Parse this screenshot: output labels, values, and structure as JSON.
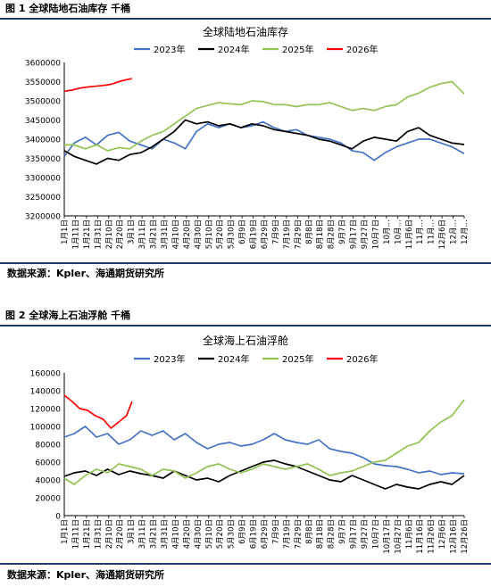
{
  "figure1": {
    "caption": "图 1 全球陆地石油库存 千桶",
    "source": "数据来源：Kpler、海通期货研究所"
  },
  "figure2": {
    "caption": "图 2 全球海上石油浮舱 千桶",
    "source": "数据来源：Kpler、海通期货研究所"
  },
  "colors": {
    "2023年": "#4472c4",
    "2024年": "#000000",
    "2025年": "#92c353",
    "2026年": "#ff0000",
    "rule": "#1f3a6e"
  },
  "chart_data": [
    {
      "type": "line",
      "title": "全球陆地石油库存",
      "legend_position": "top",
      "ylim": [
        3200000,
        3600000
      ],
      "y_ticks": [
        "3600000",
        "3550000",
        "3500000",
        "3450000",
        "3400000",
        "3350000",
        "3300000",
        "3250000",
        "3200000"
      ],
      "x_ticks": [
        "1月1日",
        "1月11日",
        "1月21日",
        "1月31日",
        "2月10日",
        "2月20日",
        "3月1日",
        "3月11日",
        "3月21日",
        "3月31日",
        "4月10日",
        "4月20日",
        "4月30日",
        "5月10日",
        "5月20日",
        "5月30日",
        "6月9日",
        "6月19日",
        "6月29日",
        "7月9日",
        "7月19日",
        "7月29日",
        "8月8日",
        "8月18日",
        "8月28日",
        "9月7日",
        "9月17日",
        "9月27日",
        "10月7日",
        "10月…",
        "10月…",
        "11月6日",
        "11月…",
        "11月…",
        "12月6日",
        "12月…",
        "12月…"
      ],
      "series": [
        {
          "name": "2023年",
          "points": [
            [
              1,
              3355000
            ],
            [
              10,
              3390000
            ],
            [
              20,
              3405000
            ],
            [
              30,
              3385000
            ],
            [
              40,
              3410000
            ],
            [
              50,
              3418000
            ],
            [
              60,
              3395000
            ],
            [
              70,
              3385000
            ],
            [
              80,
              3375000
            ],
            [
              90,
              3400000
            ],
            [
              100,
              3390000
            ],
            [
              110,
              3375000
            ],
            [
              120,
              3420000
            ],
            [
              130,
              3440000
            ],
            [
              140,
              3430000
            ],
            [
              150,
              3440000
            ],
            [
              160,
              3430000
            ],
            [
              170,
              3435000
            ],
            [
              180,
              3445000
            ],
            [
              190,
              3430000
            ],
            [
              200,
              3420000
            ],
            [
              210,
              3425000
            ],
            [
              220,
              3410000
            ],
            [
              230,
              3405000
            ],
            [
              240,
              3400000
            ],
            [
              250,
              3390000
            ],
            [
              260,
              3370000
            ],
            [
              270,
              3365000
            ],
            [
              280,
              3345000
            ],
            [
              290,
              3365000
            ],
            [
              300,
              3380000
            ],
            [
              310,
              3390000
            ],
            [
              320,
              3400000
            ],
            [
              330,
              3400000
            ],
            [
              340,
              3390000
            ],
            [
              350,
              3380000
            ],
            [
              361,
              3362000
            ]
          ]
        },
        {
          "name": "2024年",
          "points": [
            [
              1,
              3370000
            ],
            [
              10,
              3355000
            ],
            [
              20,
              3345000
            ],
            [
              30,
              3335000
            ],
            [
              40,
              3350000
            ],
            [
              50,
              3345000
            ],
            [
              60,
              3360000
            ],
            [
              70,
              3365000
            ],
            [
              80,
              3380000
            ],
            [
              90,
              3400000
            ],
            [
              100,
              3420000
            ],
            [
              110,
              3450000
            ],
            [
              120,
              3440000
            ],
            [
              130,
              3445000
            ],
            [
              140,
              3435000
            ],
            [
              150,
              3440000
            ],
            [
              160,
              3430000
            ],
            [
              170,
              3440000
            ],
            [
              180,
              3435000
            ],
            [
              190,
              3425000
            ],
            [
              200,
              3420000
            ],
            [
              210,
              3415000
            ],
            [
              220,
              3410000
            ],
            [
              230,
              3400000
            ],
            [
              240,
              3395000
            ],
            [
              250,
              3385000
            ],
            [
              260,
              3375000
            ],
            [
              270,
              3395000
            ],
            [
              280,
              3405000
            ],
            [
              290,
              3400000
            ],
            [
              300,
              3395000
            ],
            [
              310,
              3420000
            ],
            [
              320,
              3430000
            ],
            [
              330,
              3410000
            ],
            [
              340,
              3400000
            ],
            [
              350,
              3390000
            ],
            [
              361,
              3386000
            ]
          ]
        },
        {
          "name": "2025年",
          "points": [
            [
              1,
              3385000
            ],
            [
              10,
              3385000
            ],
            [
              20,
              3375000
            ],
            [
              30,
              3385000
            ],
            [
              40,
              3370000
            ],
            [
              50,
              3378000
            ],
            [
              60,
              3375000
            ],
            [
              70,
              3395000
            ],
            [
              80,
              3410000
            ],
            [
              90,
              3420000
            ],
            [
              100,
              3440000
            ],
            [
              110,
              3460000
            ],
            [
              120,
              3480000
            ],
            [
              130,
              3488000
            ],
            [
              140,
              3495000
            ],
            [
              150,
              3492000
            ],
            [
              160,
              3490000
            ],
            [
              170,
              3500000
            ],
            [
              180,
              3498000
            ],
            [
              190,
              3490000
            ],
            [
              200,
              3490000
            ],
            [
              210,
              3485000
            ],
            [
              220,
              3490000
            ],
            [
              230,
              3490000
            ],
            [
              240,
              3495000
            ],
            [
              250,
              3485000
            ],
            [
              260,
              3475000
            ],
            [
              270,
              3480000
            ],
            [
              280,
              3475000
            ],
            [
              290,
              3485000
            ],
            [
              300,
              3490000
            ],
            [
              310,
              3510000
            ],
            [
              320,
              3520000
            ],
            [
              330,
              3535000
            ],
            [
              340,
              3545000
            ],
            [
              350,
              3550000
            ],
            [
              361,
              3518000
            ]
          ]
        },
        {
          "name": "2026年",
          "points": [
            [
              1,
              3525000
            ],
            [
              8,
              3528000
            ],
            [
              15,
              3533000
            ],
            [
              22,
              3536000
            ],
            [
              29,
              3538000
            ],
            [
              36,
              3540000
            ],
            [
              43,
              3543000
            ],
            [
              50,
              3550000
            ],
            [
              57,
              3555000
            ],
            [
              62,
              3558000
            ]
          ]
        }
      ]
    },
    {
      "type": "line",
      "title": "全球海上石油浮舱",
      "legend_position": "top",
      "ylim": [
        0,
        160000
      ],
      "y_ticks": [
        "160000",
        "140000",
        "120000",
        "100000",
        "80000",
        "60000",
        "40000",
        "20000",
        "0"
      ],
      "x_ticks": [
        "1月1日",
        "1月11日",
        "1月21日",
        "1月31日",
        "2月10日",
        "2月20日",
        "3月1日",
        "3月11日",
        "3月21日",
        "3月31日",
        "4月10日",
        "4月20日",
        "4月30日",
        "5月10日",
        "5月20日",
        "5月30日",
        "6月9日",
        "6月19日",
        "6月29日",
        "7月9日",
        "7月19日",
        "7月29日",
        "8月8日",
        "8月18日",
        "8月28日",
        "9月7日",
        "9月17日",
        "9月27日",
        "10月7日",
        "10月17日",
        "10月27日",
        "11月6日",
        "11月16日",
        "11月26日",
        "12月6日",
        "12月16日",
        "12月26日"
      ],
      "series": [
        {
          "name": "2023年",
          "points": [
            [
              1,
              88000
            ],
            [
              10,
              92000
            ],
            [
              20,
              100000
            ],
            [
              30,
              88000
            ],
            [
              40,
              92000
            ],
            [
              50,
              80000
            ],
            [
              60,
              85000
            ],
            [
              70,
              95000
            ],
            [
              80,
              90000
            ],
            [
              90,
              95000
            ],
            [
              100,
              85000
            ],
            [
              110,
              92000
            ],
            [
              120,
              82000
            ],
            [
              130,
              75000
            ],
            [
              140,
              80000
            ],
            [
              150,
              82000
            ],
            [
              160,
              78000
            ],
            [
              170,
              80000
            ],
            [
              180,
              85000
            ],
            [
              190,
              92000
            ],
            [
              200,
              85000
            ],
            [
              210,
              82000
            ],
            [
              220,
              80000
            ],
            [
              230,
              85000
            ],
            [
              240,
              75000
            ],
            [
              250,
              72000
            ],
            [
              260,
              70000
            ],
            [
              270,
              65000
            ],
            [
              280,
              58000
            ],
            [
              290,
              56000
            ],
            [
              300,
              55000
            ],
            [
              310,
              52000
            ],
            [
              320,
              48000
            ],
            [
              330,
              50000
            ],
            [
              340,
              46000
            ],
            [
              350,
              48000
            ],
            [
              361,
              47000
            ]
          ]
        },
        {
          "name": "2024年",
          "points": [
            [
              1,
              44000
            ],
            [
              10,
              48000
            ],
            [
              20,
              50000
            ],
            [
              30,
              45000
            ],
            [
              40,
              52000
            ],
            [
              50,
              46000
            ],
            [
              60,
              50000
            ],
            [
              70,
              47000
            ],
            [
              80,
              45000
            ],
            [
              90,
              42000
            ],
            [
              100,
              50000
            ],
            [
              110,
              45000
            ],
            [
              120,
              40000
            ],
            [
              130,
              42000
            ],
            [
              140,
              38000
            ],
            [
              150,
              45000
            ],
            [
              160,
              50000
            ],
            [
              170,
              55000
            ],
            [
              180,
              60000
            ],
            [
              190,
              62000
            ],
            [
              200,
              58000
            ],
            [
              210,
              55000
            ],
            [
              220,
              50000
            ],
            [
              230,
              45000
            ],
            [
              240,
              40000
            ],
            [
              250,
              38000
            ],
            [
              260,
              45000
            ],
            [
              270,
              40000
            ],
            [
              280,
              35000
            ],
            [
              290,
              30000
            ],
            [
              300,
              35000
            ],
            [
              310,
              32000
            ],
            [
              320,
              30000
            ],
            [
              330,
              35000
            ],
            [
              340,
              38000
            ],
            [
              350,
              35000
            ],
            [
              361,
              45000
            ]
          ]
        },
        {
          "name": "2025年",
          "points": [
            [
              1,
              42000
            ],
            [
              10,
              35000
            ],
            [
              20,
              45000
            ],
            [
              30,
              52000
            ],
            [
              40,
              48000
            ],
            [
              50,
              58000
            ],
            [
              60,
              55000
            ],
            [
              70,
              52000
            ],
            [
              80,
              45000
            ],
            [
              90,
              52000
            ],
            [
              100,
              50000
            ],
            [
              110,
              42000
            ],
            [
              120,
              48000
            ],
            [
              130,
              55000
            ],
            [
              140,
              58000
            ],
            [
              150,
              52000
            ],
            [
              160,
              48000
            ],
            [
              170,
              52000
            ],
            [
              180,
              58000
            ],
            [
              190,
              55000
            ],
            [
              200,
              52000
            ],
            [
              210,
              55000
            ],
            [
              220,
              58000
            ],
            [
              230,
              52000
            ],
            [
              240,
              45000
            ],
            [
              250,
              48000
            ],
            [
              260,
              50000
            ],
            [
              270,
              55000
            ],
            [
              280,
              60000
            ],
            [
              290,
              62000
            ],
            [
              300,
              70000
            ],
            [
              310,
              78000
            ],
            [
              320,
              82000
            ],
            [
              330,
              95000
            ],
            [
              340,
              105000
            ],
            [
              350,
              112000
            ],
            [
              361,
              130000
            ]
          ]
        },
        {
          "name": "2026年",
          "points": [
            [
              1,
              135000
            ],
            [
              8,
              128000
            ],
            [
              15,
              120000
            ],
            [
              22,
              118000
            ],
            [
              29,
              112000
            ],
            [
              36,
              108000
            ],
            [
              43,
              98000
            ],
            [
              50,
              105000
            ],
            [
              57,
              112000
            ],
            [
              62,
              128000
            ]
          ]
        }
      ]
    }
  ]
}
